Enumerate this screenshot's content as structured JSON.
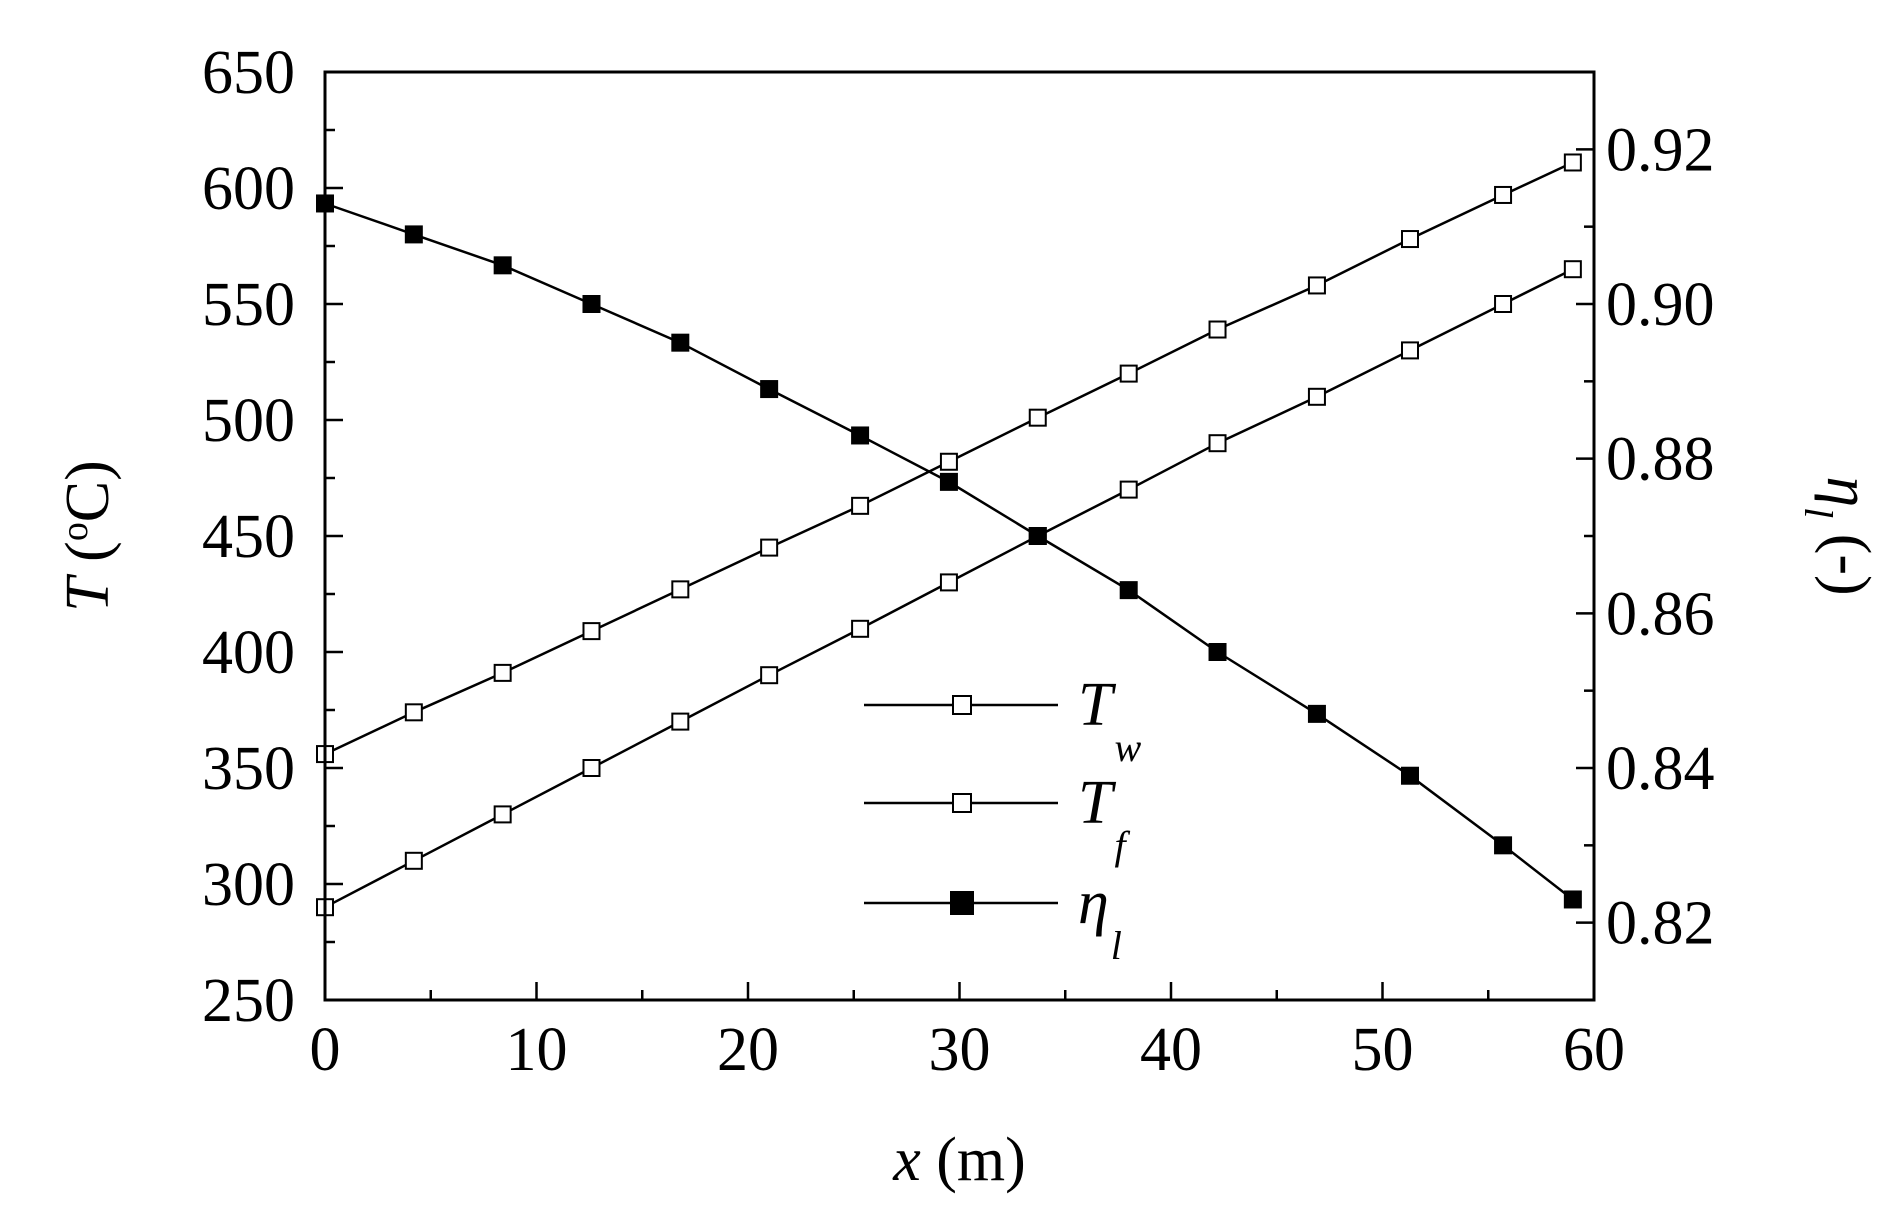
{
  "chart_data": {
    "type": "line",
    "xlabel": "x (m)",
    "xlabel_var": "x",
    "xlabel_unit": " (m)",
    "ylabel_left": "T (°C)",
    "ylabel_left_var": "T",
    "ylabel_left_unit_open": " (",
    "ylabel_left_unit_deg": "o",
    "ylabel_left_unit_close": "C)",
    "ylabel_right": "ηl (-)",
    "ylabel_right_var": "η",
    "ylabel_right_sub": "l",
    "ylabel_right_unit": " (-)",
    "xlim": [
      0,
      60
    ],
    "ylim_left": [
      250,
      650
    ],
    "ylim_right": [
      0.81,
      0.93
    ],
    "x_ticks": [
      "0",
      "10",
      "20",
      "30",
      "40",
      "50",
      "60"
    ],
    "y_left_ticks": [
      "250",
      "300",
      "350",
      "400",
      "450",
      "500",
      "550",
      "600",
      "650"
    ],
    "y_right_ticks": [
      "0.82",
      "0.84",
      "0.86",
      "0.88",
      "0.90",
      "0.92"
    ],
    "grid": false,
    "legend_position": "center-bottom",
    "x": [
      0,
      4.2,
      8.4,
      12.6,
      16.8,
      21.0,
      25.3,
      29.5,
      33.7,
      38.0,
      42.2,
      46.9,
      51.3,
      55.7,
      59.0
    ],
    "series": [
      {
        "name": "Tw",
        "name_main": "T",
        "name_sub": "w",
        "axis": "left",
        "marker": "open-square",
        "values": [
          356,
          374,
          391,
          409,
          427,
          445,
          463,
          482,
          501,
          520,
          539,
          558,
          578,
          597,
          611
        ]
      },
      {
        "name": "Tf",
        "name_main": "T",
        "name_sub": "f",
        "axis": "left",
        "marker": "open-square",
        "values": [
          290,
          310,
          330,
          350,
          370,
          390,
          410,
          430,
          450,
          470,
          490,
          510,
          530,
          550,
          565
        ]
      },
      {
        "name": "ηl",
        "name_main": "η",
        "name_sub": "l",
        "axis": "right",
        "marker": "filled-square",
        "values": [
          0.913,
          0.909,
          0.905,
          0.9,
          0.895,
          0.889,
          0.883,
          0.877,
          0.87,
          0.863,
          0.855,
          0.847,
          0.839,
          0.83,
          0.823
        ]
      }
    ]
  }
}
